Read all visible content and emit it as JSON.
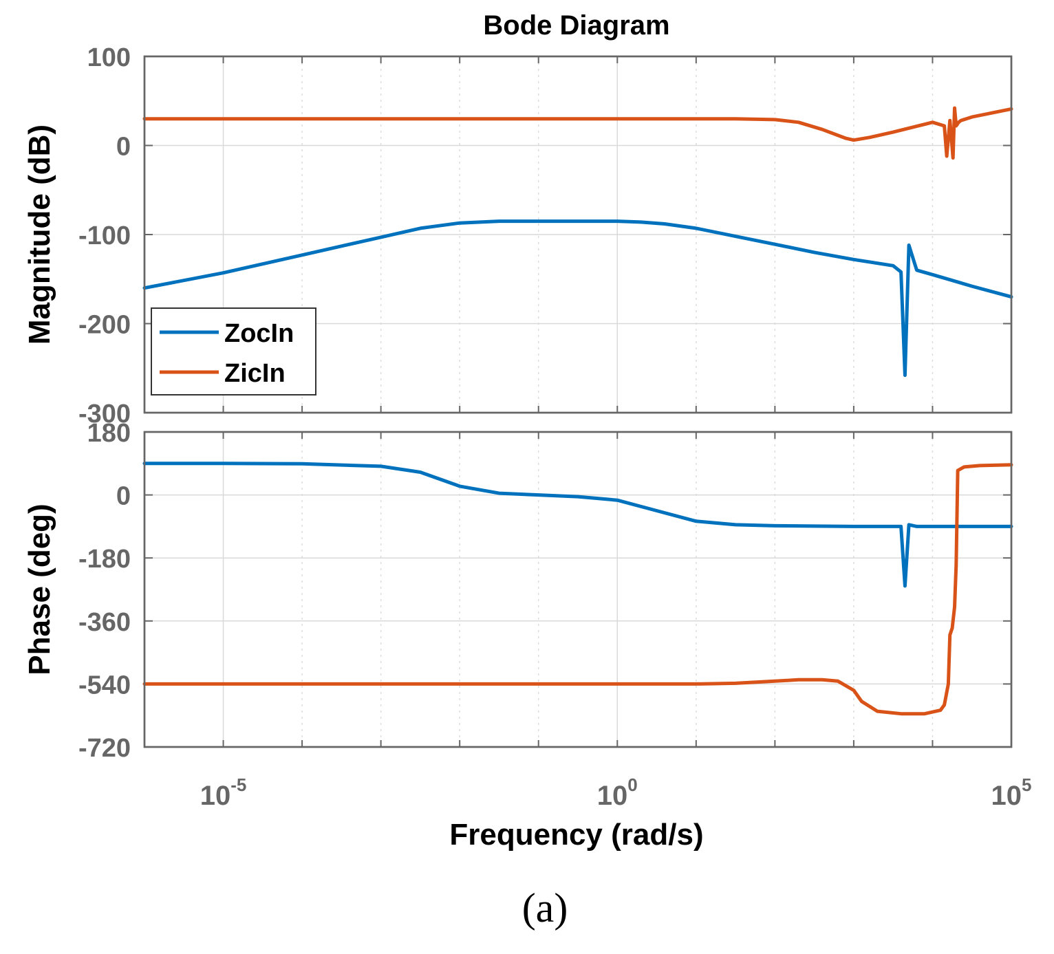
{
  "chart_data": {
    "type": "line",
    "title": "Bode Diagram",
    "xlabel": "Frequency  (rad/s)",
    "xscale": "log",
    "xlim": [
      1e-06,
      100000
    ],
    "x_ticks": [
      {
        "base": "10",
        "exp": "-5",
        "value": 1e-05
      },
      {
        "base": "10",
        "exp": "0",
        "value": 1
      },
      {
        "base": "10",
        "exp": "5",
        "value": 100000
      }
    ],
    "legend": {
      "placement": "lower-left of magnitude panel",
      "entries": [
        "ZocIn",
        "ZicIn"
      ]
    },
    "caption": "(a)",
    "colors": {
      "ZocIn": "#0072BD",
      "ZicIn": "#D95319"
    },
    "subplots": [
      {
        "name": "magnitude",
        "ylabel": "Magnitude (dB)",
        "ylim": [
          -300,
          100
        ],
        "yticks": [
          "100",
          "0",
          "-100",
          "-200",
          "-300"
        ],
        "ytick_values": [
          100,
          0,
          -100,
          -200,
          -300
        ],
        "series": [
          {
            "name": "ZocIn",
            "log10_x": [
              -6,
              -5,
              -4,
              -3,
              -2.5,
              -2,
              -1.5,
              -1,
              -0.5,
              0,
              0.3,
              0.6,
              1,
              1.5,
              2,
              2.5,
              3,
              3.5,
              3.6,
              3.65,
              3.7,
              3.8,
              4,
              4.5,
              5
            ],
            "y": [
              -160,
              -143,
              -123,
              -103,
              -93,
              -87,
              -85,
              -85,
              -85,
              -85,
              -86,
              -88,
              -93,
              -102,
              -111,
              -120,
              -128,
              -135,
              -142,
              -258,
              -112,
              -140,
              -145,
              -158,
              -170
            ]
          },
          {
            "name": "ZicIn",
            "log10_x": [
              -6,
              -5,
              -4,
              -3,
              -2,
              -1,
              0,
              1,
              1.5,
              2,
              2.3,
              2.6,
              2.9,
              3.0,
              3.2,
              3.5,
              4.0,
              4.15,
              4.18,
              4.22,
              4.26,
              4.28,
              4.3,
              4.33,
              4.36,
              4.5,
              5
            ],
            "y": [
              30,
              30,
              30,
              30,
              30,
              30,
              30,
              30,
              30,
              29,
              26,
              18,
              8,
              6,
              9,
              15,
              26,
              22,
              -12,
              28,
              -14,
              42,
              22,
              26,
              28,
              32,
              41
            ]
          }
        ]
      },
      {
        "name": "phase",
        "ylabel": "Phase (deg)",
        "ylim": [
          -720,
          180
        ],
        "yticks": [
          "180",
          "0",
          "-180",
          "-360",
          "-540",
          "-720"
        ],
        "ytick_values": [
          180,
          0,
          -180,
          -360,
          -540,
          -720
        ],
        "series": [
          {
            "name": "ZocIn",
            "log10_x": [
              -6,
              -5,
              -4,
              -3,
              -2.5,
              -2,
              -1.5,
              -1,
              -0.5,
              0,
              0.5,
              1,
              1.5,
              2,
              2.5,
              3,
              3.5,
              3.6,
              3.65,
              3.7,
              3.8,
              4,
              5
            ],
            "y": [
              90,
              90,
              89,
              82,
              65,
              25,
              5,
              0,
              -5,
              -15,
              -45,
              -75,
              -85,
              -88,
              -89,
              -90,
              -90,
              -90,
              -260,
              -85,
              -90,
              -90,
              -90
            ]
          },
          {
            "name": "ZicIn",
            "log10_x": [
              -6,
              -5,
              -4,
              -3,
              -2,
              -1,
              0,
              1,
              1.5,
              2,
              2.3,
              2.6,
              2.8,
              3.0,
              3.1,
              3.3,
              3.6,
              3.9,
              4.1,
              4.15,
              4.2,
              4.22,
              4.25,
              4.28,
              4.3,
              4.32,
              4.4,
              4.6,
              5
            ],
            "y": [
              -540,
              -540,
              -540,
              -540,
              -540,
              -540,
              -540,
              -540,
              -538,
              -532,
              -528,
              -528,
              -532,
              -558,
              -590,
              -618,
              -625,
              -625,
              -615,
              -600,
              -540,
              -400,
              -380,
              -320,
              -200,
              70,
              80,
              84,
              86
            ]
          }
        ]
      }
    ]
  }
}
